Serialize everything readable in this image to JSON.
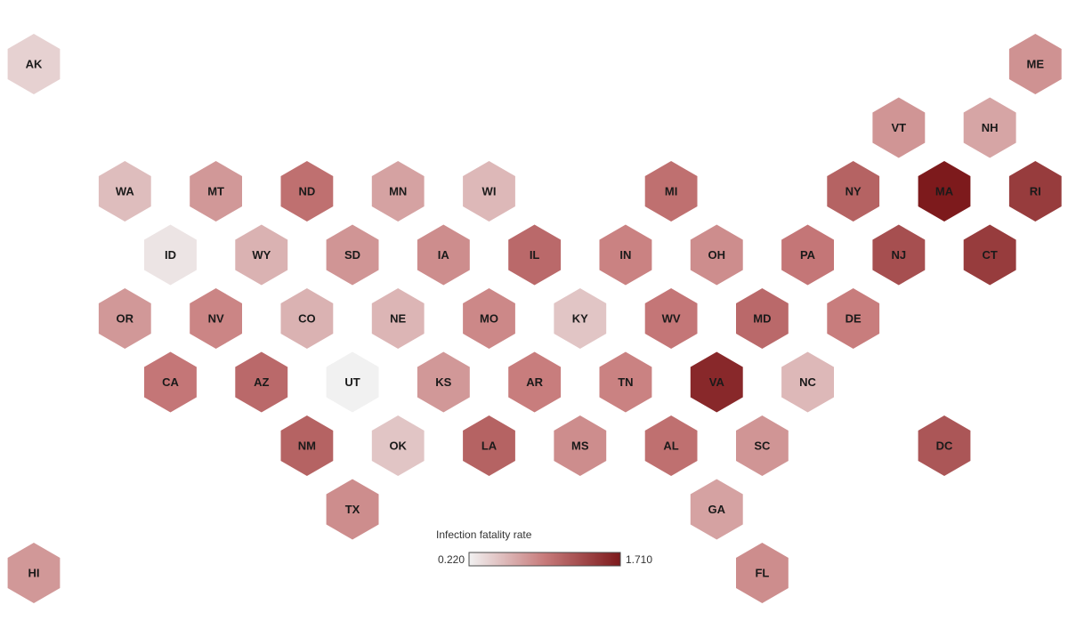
{
  "legend": {
    "title": "Infection fatality rate",
    "min_label": "0.220",
    "max_label": "1.710",
    "min_value": 0.22,
    "max_value": 1.71,
    "color_low": "#f1f1f1",
    "color_high": "#7d1a1c"
  },
  "chart_data": {
    "type": "hex-tile map",
    "metric": "Infection fatality rate",
    "range": [
      0.22,
      1.71
    ],
    "states": [
      {
        "abbr": "AK",
        "row": 0,
        "col": 0,
        "value": 0.42
      },
      {
        "abbr": "ME",
        "row": 0,
        "col": 11,
        "value": 0.82
      },
      {
        "abbr": "VT",
        "row": 1,
        "col": 9,
        "value": 0.8
      },
      {
        "abbr": "NH",
        "row": 1,
        "col": 10,
        "value": 0.7
      },
      {
        "abbr": "WA",
        "row": 2,
        "col": 1,
        "value": 0.55
      },
      {
        "abbr": "MT",
        "row": 2,
        "col": 2,
        "value": 0.78
      },
      {
        "abbr": "ND",
        "row": 2,
        "col": 3,
        "value": 1.05
      },
      {
        "abbr": "MN",
        "row": 2,
        "col": 4,
        "value": 0.72
      },
      {
        "abbr": "WI",
        "row": 2,
        "col": 5,
        "value": 0.58
      },
      {
        "abbr": "MI",
        "row": 2,
        "col": 7,
        "value": 1.05
      },
      {
        "abbr": "NY",
        "row": 2,
        "col": 9,
        "value": 1.15
      },
      {
        "abbr": "MA",
        "row": 2,
        "col": 10,
        "value": 1.71
      },
      {
        "abbr": "RI",
        "row": 2,
        "col": 11,
        "value": 1.45
      },
      {
        "abbr": "ID",
        "row": 3,
        "col": 1,
        "value": 0.3
      },
      {
        "abbr": "WY",
        "row": 3,
        "col": 2,
        "value": 0.62
      },
      {
        "abbr": "SD",
        "row": 3,
        "col": 3,
        "value": 0.8
      },
      {
        "abbr": "IA",
        "row": 3,
        "col": 4,
        "value": 0.85
      },
      {
        "abbr": "IL",
        "row": 3,
        "col": 5,
        "value": 1.1
      },
      {
        "abbr": "IN",
        "row": 3,
        "col": 6,
        "value": 0.92
      },
      {
        "abbr": "OH",
        "row": 3,
        "col": 7,
        "value": 0.85
      },
      {
        "abbr": "PA",
        "row": 3,
        "col": 8,
        "value": 1.0
      },
      {
        "abbr": "NJ",
        "row": 3,
        "col": 9,
        "value": 1.3
      },
      {
        "abbr": "CT",
        "row": 3,
        "col": 10,
        "value": 1.45
      },
      {
        "abbr": "OR",
        "row": 4,
        "col": 1,
        "value": 0.78
      },
      {
        "abbr": "NV",
        "row": 4,
        "col": 2,
        "value": 0.9
      },
      {
        "abbr": "CO",
        "row": 4,
        "col": 3,
        "value": 0.62
      },
      {
        "abbr": "NE",
        "row": 4,
        "col": 4,
        "value": 0.6
      },
      {
        "abbr": "MO",
        "row": 4,
        "col": 5,
        "value": 0.88
      },
      {
        "abbr": "KY",
        "row": 4,
        "col": 6,
        "value": 0.5
      },
      {
        "abbr": "WV",
        "row": 4,
        "col": 7,
        "value": 1.0
      },
      {
        "abbr": "MD",
        "row": 4,
        "col": 8,
        "value": 1.1
      },
      {
        "abbr": "DE",
        "row": 4,
        "col": 9,
        "value": 0.95
      },
      {
        "abbr": "CA",
        "row": 5,
        "col": 1,
        "value": 1.0
      },
      {
        "abbr": "AZ",
        "row": 5,
        "col": 2,
        "value": 1.1
      },
      {
        "abbr": "UT",
        "row": 5,
        "col": 3,
        "value": 0.22
      },
      {
        "abbr": "KS",
        "row": 5,
        "col": 4,
        "value": 0.78
      },
      {
        "abbr": "AR",
        "row": 5,
        "col": 5,
        "value": 0.95
      },
      {
        "abbr": "TN",
        "row": 5,
        "col": 6,
        "value": 0.92
      },
      {
        "abbr": "VA",
        "row": 5,
        "col": 7,
        "value": 1.6
      },
      {
        "abbr": "NC",
        "row": 5,
        "col": 8,
        "value": 0.58
      },
      {
        "abbr": "NM",
        "row": 6,
        "col": 3,
        "value": 1.15
      },
      {
        "abbr": "OK",
        "row": 6,
        "col": 4,
        "value": 0.5
      },
      {
        "abbr": "LA",
        "row": 6,
        "col": 5,
        "value": 1.15
      },
      {
        "abbr": "MS",
        "row": 6,
        "col": 6,
        "value": 0.85
      },
      {
        "abbr": "AL",
        "row": 6,
        "col": 7,
        "value": 1.05
      },
      {
        "abbr": "SC",
        "row": 6,
        "col": 8,
        "value": 0.8
      },
      {
        "abbr": "DC",
        "row": 6,
        "col": 10,
        "value": 1.25
      },
      {
        "abbr": "TX",
        "row": 7,
        "col": 3,
        "value": 0.85
      },
      {
        "abbr": "GA",
        "row": 7,
        "col": 7,
        "value": 0.72
      },
      {
        "abbr": "HI",
        "row": 8,
        "col": 0,
        "value": 0.78
      },
      {
        "abbr": "FL",
        "row": 8,
        "col": 8,
        "value": 0.85
      }
    ]
  }
}
